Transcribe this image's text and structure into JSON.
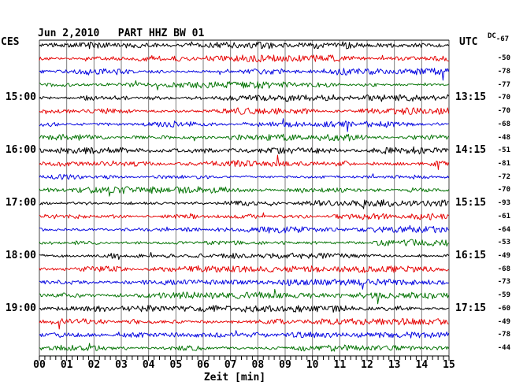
{
  "title": "Jun 2,2010   PART HHZ BW 01",
  "header": {
    "left_timezone": "CES",
    "right_timezone": "UTC",
    "dc_label": "DC"
  },
  "colors": {
    "black": "#000000",
    "red": "#e60000",
    "blue": "#0000e0",
    "green": "#007200",
    "grid": "#7d7d7d",
    "border": "#444444",
    "axis": "#000000",
    "background": "#ffffff",
    "text": "#000000"
  },
  "chart_data": {
    "type": "line",
    "subtype": "helicorder-seismogram",
    "station_header": "PART HHZ BW 01",
    "date": "Jun 2,2010",
    "xlabel": "Zeit [min]",
    "x_ticks": [
      "00",
      "01",
      "02",
      "03",
      "04",
      "05",
      "06",
      "07",
      "08",
      "09",
      "10",
      "11",
      "12",
      "13",
      "14",
      "15"
    ],
    "x_range_minutes": [
      0,
      15
    ],
    "minutes_per_line": 15,
    "minor_ticks_per_minute": 5,
    "grid": true,
    "trace_color_cycle": [
      "black",
      "red",
      "blue",
      "green"
    ],
    "traces": [
      {
        "color": "black",
        "left": "",
        "right": "",
        "dc": "-67"
      },
      {
        "color": "red",
        "left": "",
        "right": "",
        "dc": "-50"
      },
      {
        "color": "blue",
        "left": "",
        "right": "",
        "dc": "-78"
      },
      {
        "color": "green",
        "left": "",
        "right": "",
        "dc": "-77"
      },
      {
        "color": "black",
        "left": "15:00",
        "right": "13:15",
        "dc": "-70"
      },
      {
        "color": "red",
        "left": "",
        "right": "",
        "dc": "-70"
      },
      {
        "color": "blue",
        "left": "",
        "right": "",
        "dc": "-68"
      },
      {
        "color": "green",
        "left": "",
        "right": "",
        "dc": "-48"
      },
      {
        "color": "black",
        "left": "16:00",
        "right": "14:15",
        "dc": "-51"
      },
      {
        "color": "red",
        "left": "",
        "right": "",
        "dc": "-81"
      },
      {
        "color": "blue",
        "left": "",
        "right": "",
        "dc": "-72"
      },
      {
        "color": "green",
        "left": "",
        "right": "",
        "dc": "-70"
      },
      {
        "color": "black",
        "left": "17:00",
        "right": "15:15",
        "dc": "-93"
      },
      {
        "color": "red",
        "left": "",
        "right": "",
        "dc": "-61"
      },
      {
        "color": "blue",
        "left": "",
        "right": "",
        "dc": "-64"
      },
      {
        "color": "green",
        "left": "",
        "right": "",
        "dc": "-53"
      },
      {
        "color": "black",
        "left": "18:00",
        "right": "16:15",
        "dc": "-49"
      },
      {
        "color": "red",
        "left": "",
        "right": "",
        "dc": "-68"
      },
      {
        "color": "blue",
        "left": "",
        "right": "",
        "dc": "-73"
      },
      {
        "color": "green",
        "left": "",
        "right": "",
        "dc": "-59"
      },
      {
        "color": "black",
        "left": "19:00",
        "right": "17:15",
        "dc": "-60"
      },
      {
        "color": "red",
        "left": "",
        "right": "",
        "dc": "-49"
      },
      {
        "color": "blue",
        "left": "",
        "right": "",
        "dc": "-78"
      },
      {
        "color": "green",
        "left": "",
        "right": "",
        "dc": "-44"
      }
    ]
  }
}
